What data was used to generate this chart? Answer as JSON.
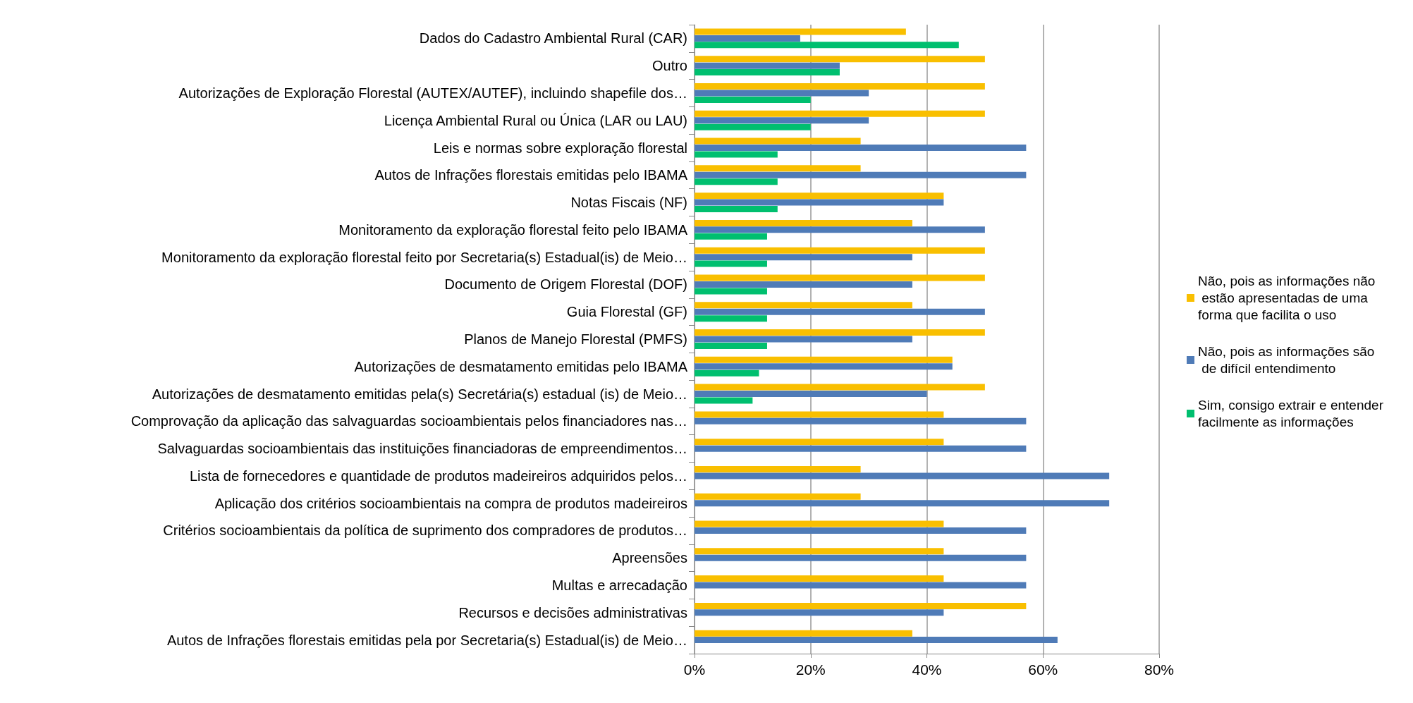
{
  "chart_data": {
    "type": "bar",
    "orientation": "horizontal",
    "categories": [
      "Dados do Cadastro Ambiental Rural (CAR)",
      "Outro",
      "Autorizações de Exploração Florestal (AUTEX/AUTEF), incluindo shapefile dos…",
      "Licença Ambiental Rural ou Única (LAR ou LAU)",
      "Leis e normas sobre exploração florestal",
      "Autos de Infrações florestais emitidas pelo IBAMA",
      "Notas Fiscais (NF)",
      "Monitoramento da exploração florestal feito pelo IBAMA",
      "Monitoramento da exploração florestal feito por Secretaria(s) Estadual(is) de Meio…",
      "Documento de Origem Florestal (DOF)",
      "Guia Florestal (GF)",
      "Planos de Manejo Florestal (PMFS)",
      "Autorizações de desmatamento emitidas pelo IBAMA",
      "Autorizações de desmatamento emitidas pela(s) Secretária(s) estadual (is) de Meio…",
      "Comprovação da aplicação das salvaguardas socioambientais pelos financiadores nas…",
      "Salvaguardas socioambientais das instituições financiadoras de empreendimentos…",
      "Lista de fornecedores e quantidade de produtos madeireiros adquiridos pelos…",
      "Aplicação dos critérios socioambientais na compra de produtos madeireiros",
      "Critérios socioambientais da política de suprimento dos compradores de produtos…",
      "Apreensões",
      "Multas e arrecadação",
      "Recursos e decisões administrativas",
      "Autos de Infrações florestais emitidas pela por Secretaria(s) Estadual(is) de Meio…"
    ],
    "series": [
      {
        "name": "Não, pois as informações não estão apresentadas de uma forma que facilita o uso",
        "color": "#f9bf00",
        "values": [
          36.4,
          50,
          50,
          50,
          28.6,
          28.6,
          42.9,
          37.5,
          50,
          50,
          37.5,
          50,
          44.4,
          50,
          42.9,
          42.9,
          28.6,
          28.6,
          42.9,
          42.9,
          42.9,
          57.1,
          37.5
        ]
      },
      {
        "name": "Não, pois as informações são de difícil entendimento",
        "color": "#4f7bb7",
        "values": [
          18.2,
          25,
          30,
          30,
          57.1,
          57.1,
          42.9,
          50,
          37.5,
          37.5,
          50,
          37.5,
          44.4,
          40,
          57.1,
          57.1,
          71.4,
          71.4,
          57.1,
          57.1,
          57.1,
          42.9,
          62.5
        ]
      },
      {
        "name": "Sim, consigo extrair e entender facilmente as informações",
        "color": "#00bf6f",
        "values": [
          45.5,
          25,
          20,
          20,
          14.3,
          14.3,
          14.3,
          12.5,
          12.5,
          12.5,
          12.5,
          12.5,
          11.1,
          10,
          null,
          null,
          null,
          null,
          null,
          null,
          null,
          null,
          null
        ]
      }
    ],
    "xlim": [
      0,
      80
    ],
    "xticks": [
      {
        "value": 0,
        "label": "0%"
      },
      {
        "value": 20,
        "label": "20%"
      },
      {
        "value": 40,
        "label": "40%"
      },
      {
        "value": 60,
        "label": "60%"
      },
      {
        "value": 80,
        "label": "80%"
      }
    ],
    "grid": "x",
    "legend": "right"
  }
}
